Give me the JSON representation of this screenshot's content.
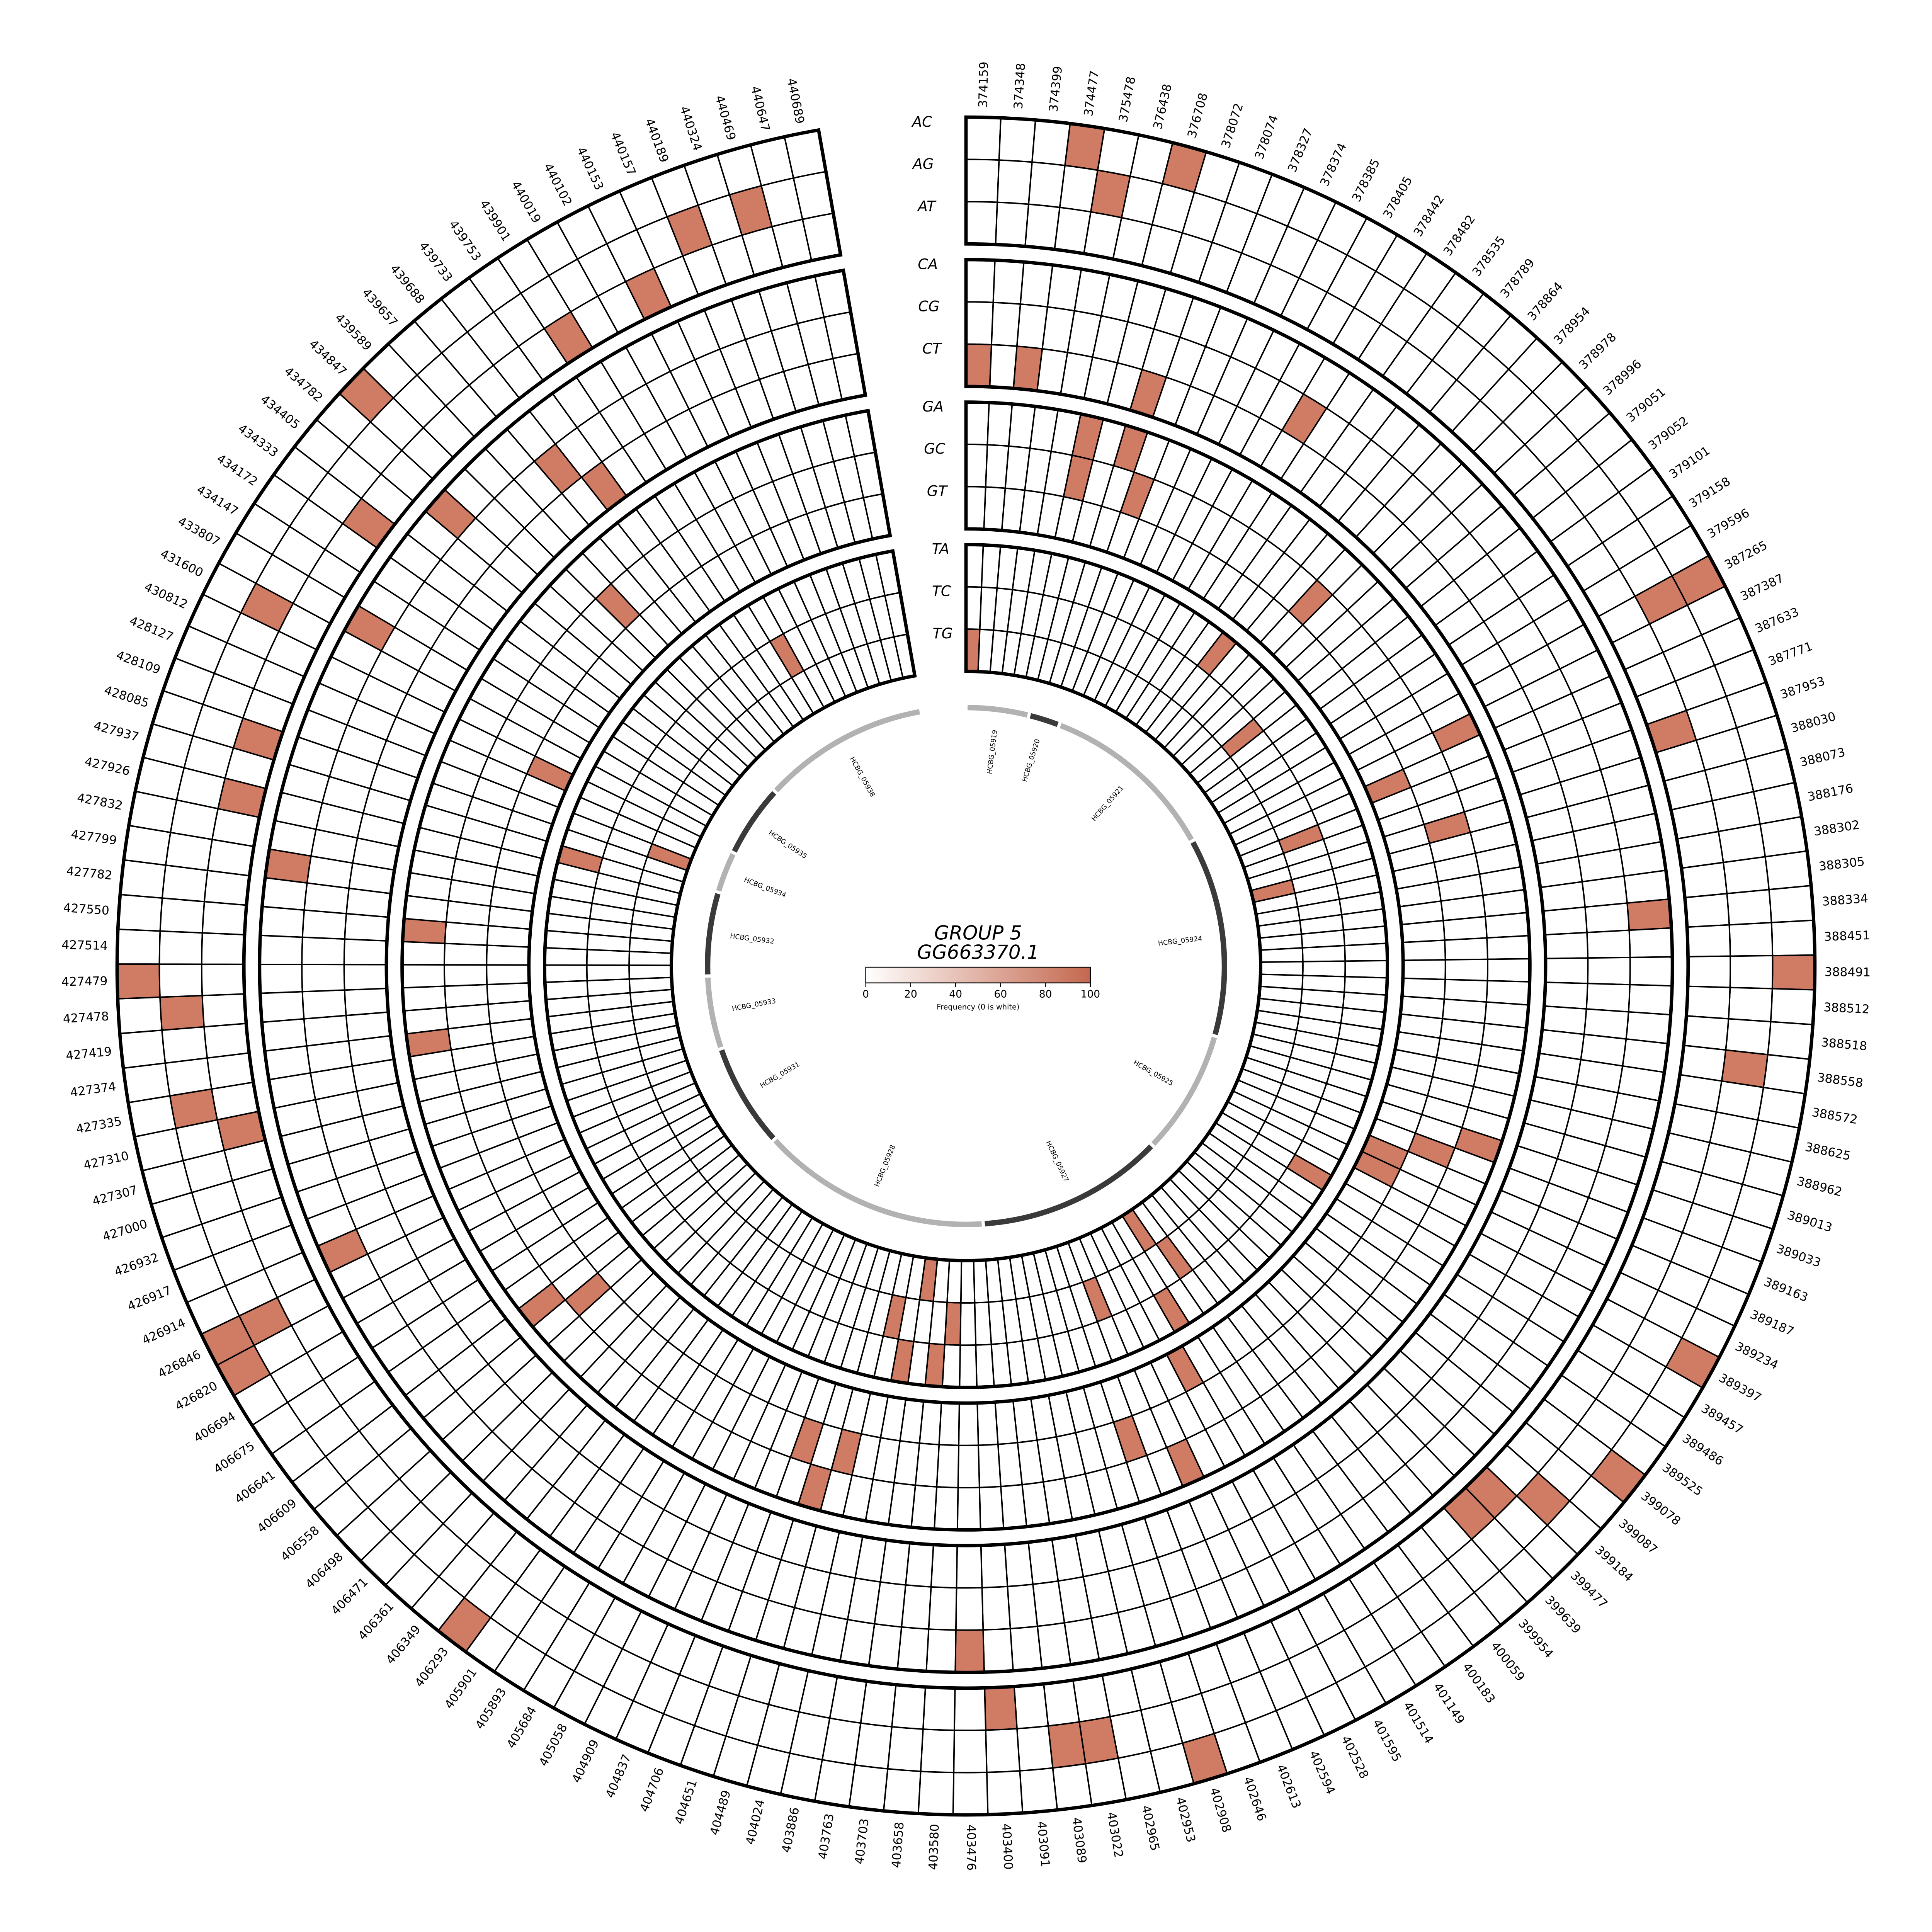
{
  "title": {
    "line1": "GROUP 5",
    "line2": "GG663370.1"
  },
  "legend": {
    "label": "Frequency (0 is white)",
    "ticks": [
      "0",
      "20",
      "40",
      "60",
      "80",
      "100"
    ],
    "bar_start_color": "#ffffff",
    "bar_end_color": "#c4684f"
  },
  "chart_data": {
    "type": "heatmap",
    "subtype": "circular-snp-frequency",
    "ring_groups": [
      [
        "AC",
        "AG",
        "AT"
      ],
      [
        "CA",
        "CG",
        "CT"
      ],
      [
        "GA",
        "GC",
        "GT"
      ],
      [
        "TA",
        "TC",
        "TG"
      ]
    ],
    "gap_degrees": 10,
    "fill_color": "#d07b64",
    "fill_value_approx": 80,
    "positions": [
      "374159",
      "374348",
      "374399",
      "374477",
      "375478",
      "376438",
      "376708",
      "378072",
      "378074",
      "378327",
      "378374",
      "378385",
      "378405",
      "378442",
      "378482",
      "378535",
      "378789",
      "378864",
      "378954",
      "378978",
      "378996",
      "379051",
      "379052",
      "379101",
      "379158",
      "379596",
      "387265",
      "387387",
      "387633",
      "387771",
      "387953",
      "388030",
      "388073",
      "388176",
      "388302",
      "388305",
      "388334",
      "388451",
      "388491",
      "388512",
      "388518",
      "388558",
      "388572",
      "388625",
      "388962",
      "389013",
      "389033",
      "389163",
      "389187",
      "389234",
      "389397",
      "389457",
      "389486",
      "389525",
      "399078",
      "399087",
      "399184",
      "399477",
      "399639",
      "399954",
      "400059",
      "400183",
      "401149",
      "401514",
      "401595",
      "402528",
      "402594",
      "402613",
      "402646",
      "402908",
      "402953",
      "402965",
      "403022",
      "403089",
      "403091",
      "403400",
      "403476",
      "403580",
      "403658",
      "403703",
      "403763",
      "403886",
      "404024",
      "404489",
      "404651",
      "404706",
      "404837",
      "404909",
      "405058",
      "405684",
      "405893",
      "405901",
      "406293",
      "406349",
      "406361",
      "406471",
      "406498",
      "406558",
      "406609",
      "406641",
      "406675",
      "406694",
      "426820",
      "426846",
      "426914",
      "426917",
      "426932",
      "427000",
      "427307",
      "427310",
      "427335",
      "427374",
      "427419",
      "427478",
      "427479",
      "427514",
      "427550",
      "427782",
      "427799",
      "427832",
      "427926",
      "427937",
      "428085",
      "428109",
      "428127",
      "430812",
      "431600",
      "433807",
      "434147",
      "434172",
      "434333",
      "434405",
      "434782",
      "434847",
      "439589",
      "439657",
      "439688",
      "439733",
      "439753",
      "439901",
      "440019",
      "440102",
      "440153",
      "440157",
      "440189",
      "440324",
      "440469",
      "440647",
      "440689"
    ],
    "genes": [
      {
        "name": "HCBG_05919",
        "start": 0,
        "end": 6,
        "color": "#b2b2b2"
      },
      {
        "name": "HCBG_05920",
        "start": 6,
        "end": 9,
        "color": "#3a3a3a"
      },
      {
        "name": "HCBG_05921",
        "start": 9,
        "end": 26,
        "color": "#b2b2b2"
      },
      {
        "name": "HCBG_05924",
        "start": 26,
        "end": 45,
        "color": "#3a3a3a"
      },
      {
        "name": "HCBG_05925",
        "start": 45,
        "end": 57,
        "color": "#b2b2b2"
      },
      {
        "name": "HCBG_05927",
        "start": 57,
        "end": 75,
        "color": "#3a3a3a"
      },
      {
        "name": "HCBG_05928",
        "start": 75,
        "end": 97,
        "color": "#b2b2b2"
      },
      {
        "name": "HCBG_05931",
        "start": 97,
        "end": 107,
        "color": "#3a3a3a"
      },
      {
        "name": "HCBG_05933",
        "start": 107,
        "end": 114,
        "color": "#b2b2b2"
      },
      {
        "name": "HCBG_05932",
        "start": 114,
        "end": 122,
        "color": "#3a3a3a"
      },
      {
        "name": "HCBG_05934",
        "start": 122,
        "end": 126,
        "color": "#b2b2b2"
      },
      {
        "name": "HCBG_05935",
        "start": 126,
        "end": 133,
        "color": "#3a3a3a"
      },
      {
        "name": "HCBG_05938",
        "start": 133,
        "end": 149,
        "color": "#b2b2b2"
      }
    ],
    "filled": {
      "AC": [
        "374477",
        "376708",
        "387265",
        "388491",
        "389397",
        "399078",
        "402908",
        "406293",
        "426820",
        "426846",
        "427479",
        "434847"
      ],
      "AG": [
        "375478",
        "387265",
        "388558",
        "399184",
        "403022",
        "403089",
        "426846",
        "427335",
        "427478",
        "431600",
        "440189",
        "440469"
      ],
      "AT": [
        "387953",
        "399477",
        "399639",
        "403400",
        "427310",
        "427926",
        "428085",
        "434333",
        "439901",
        "440153"
      ],
      "CA": [
        "388334",
        "403476",
        "426914",
        "427799",
        "433807",
        "434782"
      ],
      "CG": [
        "378442",
        "439688"
      ],
      "CT": [
        "374159",
        "374399",
        "378072",
        "439733"
      ],
      "GA": [
        "376438",
        "378072",
        "387387",
        "389033",
        "402594",
        "404489",
        "406609",
        "427374",
        "427550"
      ],
      "GC": [
        "376438",
        "378074",
        "378954",
        "388030",
        "389163",
        "402646",
        "404024",
        "404651",
        "406558",
        "439589"
      ],
      "GT": [
        "387633",
        "389187",
        "389234",
        "401595",
        "430812"
      ],
      "TA": [
        "378789",
        "389457",
        "401514",
        "403658",
        "403763",
        "427937"
      ],
      "TC": [
        "379051",
        "387771",
        "400183",
        "402613",
        "403580",
        "403886",
        "440019"
      ],
      "TG": [
        "374159",
        "388073",
        "401149",
        "403703",
        "428109"
      ]
    }
  }
}
